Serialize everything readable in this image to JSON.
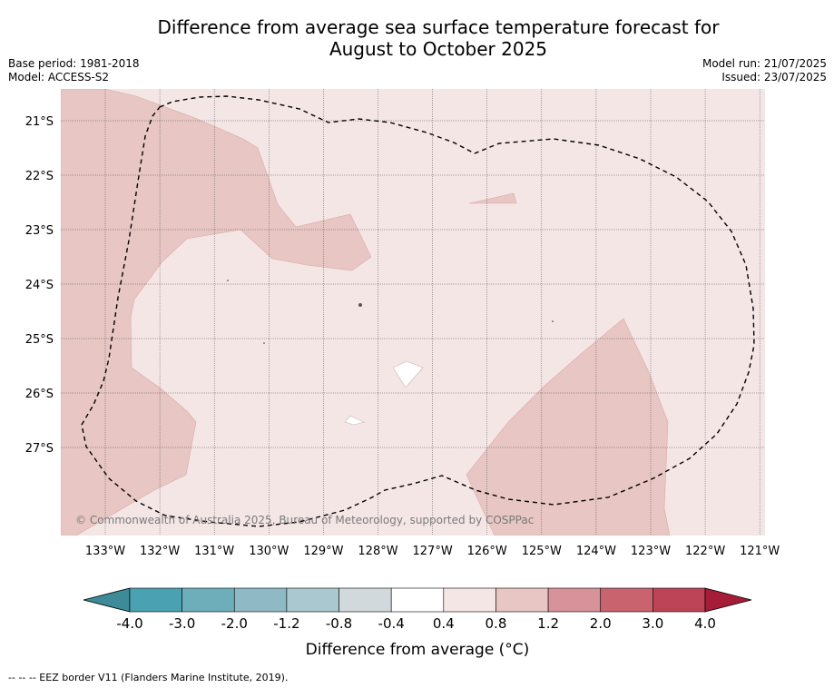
{
  "title_line1": "Difference from average sea surface temperature forecast for",
  "title_line2": "August to October 2025",
  "base_period": "Base period: 1981-2018",
  "model": "Model: ACCESS-S2",
  "model_run": "Model run: 21/07/2025",
  "issued": "Issued: 23/07/2025",
  "copyright": "© Commonwealth of Australia 2025, Bureau of Meteorology, supported by COSPPac",
  "footnote": "-- -- -- EEZ border V11 (Flanders Marine Institute, 2019).",
  "lat_labels": [
    "21°S",
    "22°S",
    "23°S",
    "24°S",
    "25°S",
    "26°S",
    "27°S"
  ],
  "lon_labels": [
    "133°W",
    "132°W",
    "131°W",
    "130°W",
    "129°W",
    "128°W",
    "127°W",
    "126°W",
    "125°W",
    "124°W",
    "123°W",
    "122°W",
    "121°W"
  ],
  "colorbar": {
    "title": "Difference from average (°C)",
    "tick_labels": [
      "-4.0",
      "-3.0",
      "-2.0",
      "-1.2",
      "-0.8",
      "-0.4",
      "0.4",
      "0.8",
      "1.2",
      "2.0",
      "3.0",
      "4.0"
    ],
    "colors": [
      "#3d8a98",
      "#4aa1b1",
      "#6eaebb",
      "#8fb9c5",
      "#a9c8cf",
      "#d2d9dc",
      "#ffffff",
      "#f5e6e6",
      "#e7c6c3",
      "#d8929a",
      "#c9646f",
      "#bd4456",
      "#a61c38"
    ]
  },
  "map": {
    "background_class_color": "#f5e6e6",
    "warm_class_color": "#e7c6c3",
    "neutral_class_color": "#ffffff"
  }
}
